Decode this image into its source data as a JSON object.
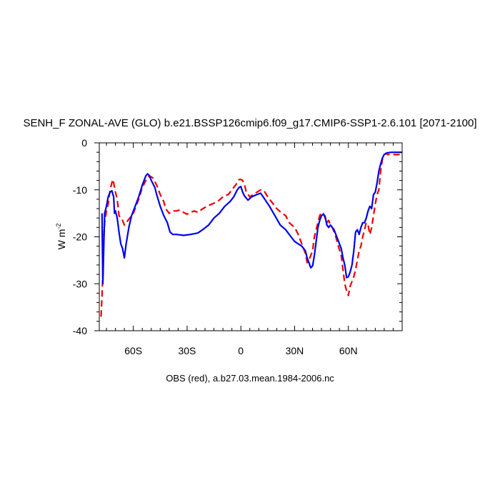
{
  "chart_data": {
    "type": "line",
    "title": "SENH_F ZONAL-AVE (GLO) b.e21.BSSP126cmip6.f09_g17.CMIP6-SSP1-2.6.101 [2071-2100]",
    "subtitle": "OBS (red), a.b27.03.mean.1984-2006.nc",
    "ylabel": "W m",
    "ylabel_sup": "-2",
    "xlim": [
      -79,
      90
    ],
    "ylim": [
      -40,
      0
    ],
    "x_ticks": [
      {
        "value": -60,
        "label": "60S"
      },
      {
        "value": -30,
        "label": "30S"
      },
      {
        "value": 0,
        "label": "0"
      },
      {
        "value": 30,
        "label": "30N"
      },
      {
        "value": 60,
        "label": "60N"
      }
    ],
    "y_ticks": [
      {
        "value": 0,
        "label": "0"
      },
      {
        "value": -10,
        "label": "-10"
      },
      {
        "value": -20,
        "label": "-20"
      },
      {
        "value": -30,
        "label": "-30"
      },
      {
        "value": -40,
        "label": "-40"
      }
    ],
    "grid": false,
    "series": [
      {
        "color": "#0000ee",
        "dash": "solid",
        "points": [
          [
            -77.5,
            -15
          ],
          [
            -77,
            -30
          ],
          [
            -76.5,
            -22
          ],
          [
            -76,
            -15
          ],
          [
            -75,
            -13.5
          ],
          [
            -74,
            -11.5
          ],
          [
            -73,
            -10.5
          ],
          [
            -72,
            -10.2
          ],
          [
            -71,
            -11.5
          ],
          [
            -70.5,
            -15
          ],
          [
            -70,
            -14.5
          ],
          [
            -69,
            -16
          ],
          [
            -68,
            -19
          ],
          [
            -67,
            -21.5
          ],
          [
            -66,
            -22.5
          ],
          [
            -65,
            -24.5
          ],
          [
            -64,
            -21.5
          ],
          [
            -62.5,
            -18
          ],
          [
            -61,
            -15.5
          ],
          [
            -59,
            -13.5
          ],
          [
            -57,
            -11.5
          ],
          [
            -55,
            -9
          ],
          [
            -53,
            -7
          ],
          [
            -52,
            -6.6
          ],
          [
            -51,
            -7
          ],
          [
            -50,
            -8
          ],
          [
            -48,
            -9.5
          ],
          [
            -47,
            -11
          ],
          [
            -45,
            -13.5
          ],
          [
            -43,
            -15.5
          ],
          [
            -41,
            -17
          ],
          [
            -39.5,
            -19
          ],
          [
            -38,
            -19.5
          ],
          [
            -36,
            -19.5
          ],
          [
            -32,
            -19.7
          ],
          [
            -28,
            -19.5
          ],
          [
            -24,
            -19.2
          ],
          [
            -21,
            -18.4
          ],
          [
            -18,
            -17.5
          ],
          [
            -15,
            -16
          ],
          [
            -12,
            -15
          ],
          [
            -9,
            -13.5
          ],
          [
            -6,
            -12.5
          ],
          [
            -4,
            -11.5
          ],
          [
            -2,
            -10
          ],
          [
            -1,
            -9.5
          ],
          [
            0,
            -9.3
          ],
          [
            1,
            -10.5
          ],
          [
            2,
            -11.3
          ],
          [
            4,
            -12.2
          ],
          [
            6,
            -11.5
          ],
          [
            9,
            -11
          ],
          [
            11,
            -10.7
          ],
          [
            13,
            -11.8
          ],
          [
            16,
            -13.5
          ],
          [
            19,
            -15.5
          ],
          [
            22,
            -17.5
          ],
          [
            25,
            -18.5
          ],
          [
            28,
            -20
          ],
          [
            30,
            -21
          ],
          [
            32,
            -21.5
          ],
          [
            34,
            -22
          ],
          [
            36,
            -23
          ],
          [
            37,
            -24.5
          ],
          [
            38,
            -25.5
          ],
          [
            39,
            -26.6
          ],
          [
            40,
            -26.2
          ],
          [
            41,
            -24
          ],
          [
            42,
            -21
          ],
          [
            43,
            -18
          ],
          [
            44,
            -16.5
          ],
          [
            45,
            -15.5
          ],
          [
            46,
            -15.2
          ],
          [
            47,
            -15.6
          ],
          [
            48,
            -17.5
          ],
          [
            49,
            -18
          ],
          [
            50,
            -17.5
          ],
          [
            52,
            -18.5
          ],
          [
            54,
            -20.5
          ],
          [
            56,
            -22.5
          ],
          [
            57,
            -24.5
          ],
          [
            58,
            -26
          ],
          [
            59,
            -28.7
          ],
          [
            60,
            -28.5
          ],
          [
            61,
            -27.5
          ],
          [
            62,
            -26
          ],
          [
            63,
            -23
          ],
          [
            64,
            -19
          ],
          [
            65,
            -18.5
          ],
          [
            66,
            -19.5
          ],
          [
            67,
            -18
          ],
          [
            68,
            -17
          ],
          [
            69,
            -17
          ],
          [
            70,
            -16
          ],
          [
            71,
            -14.5
          ],
          [
            72,
            -13.5
          ],
          [
            73,
            -14
          ],
          [
            74,
            -11
          ],
          [
            75,
            -10.5
          ],
          [
            76,
            -8.5
          ],
          [
            77,
            -6
          ],
          [
            78,
            -4.5
          ],
          [
            79,
            -3.2
          ],
          [
            80,
            -2.5
          ],
          [
            81,
            -2.2
          ],
          [
            82,
            -2.1
          ],
          [
            84,
            -2
          ],
          [
            86,
            -2
          ],
          [
            88,
            -2
          ],
          [
            90,
            -2
          ]
        ]
      },
      {
        "color": "#ee0000",
        "dash": "dashed",
        "points": [
          [
            -78,
            -37
          ],
          [
            -77.5,
            -32.5
          ],
          [
            -77,
            -28
          ],
          [
            -76.5,
            -20
          ],
          [
            -76,
            -17
          ],
          [
            -75,
            -14.5
          ],
          [
            -74,
            -13
          ],
          [
            -73,
            -10
          ],
          [
            -72,
            -8.5
          ],
          [
            -71.5,
            -7.8
          ],
          [
            -71,
            -8.5
          ],
          [
            -70,
            -10.5
          ],
          [
            -69,
            -12
          ],
          [
            -68,
            -15.5
          ],
          [
            -66,
            -16.5
          ],
          [
            -65,
            -17.5
          ],
          [
            -64,
            -17
          ],
          [
            -62,
            -16
          ],
          [
            -60,
            -15
          ],
          [
            -59,
            -14
          ],
          [
            -57,
            -12
          ],
          [
            -55,
            -9.5
          ],
          [
            -53,
            -8
          ],
          [
            -51,
            -7
          ],
          [
            -49,
            -7.5
          ],
          [
            -47,
            -9
          ],
          [
            -45,
            -11
          ],
          [
            -43,
            -12.5
          ],
          [
            -42,
            -14
          ],
          [
            -40,
            -15
          ],
          [
            -38,
            -14.5
          ],
          [
            -36,
            -14.5
          ],
          [
            -34,
            -14.3
          ],
          [
            -32,
            -14.8
          ],
          [
            -30,
            -15.2
          ],
          [
            -28,
            -14.8
          ],
          [
            -26,
            -14.5
          ],
          [
            -24,
            -14.8
          ],
          [
            -22,
            -14.2
          ],
          [
            -19,
            -13.5
          ],
          [
            -16,
            -13
          ],
          [
            -13,
            -12.5
          ],
          [
            -10,
            -11.5
          ],
          [
            -7,
            -11
          ],
          [
            -5,
            -10
          ],
          [
            -3,
            -9
          ],
          [
            -2,
            -8.5
          ],
          [
            -1,
            -7.8
          ],
          [
            0,
            -7.8
          ],
          [
            1,
            -8
          ],
          [
            2,
            -8.8
          ],
          [
            3,
            -10.5
          ],
          [
            5,
            -11.5
          ],
          [
            7,
            -11
          ],
          [
            9,
            -10.5
          ],
          [
            11,
            -10
          ],
          [
            13,
            -10.2
          ],
          [
            15,
            -11.5
          ],
          [
            17,
            -12.5
          ],
          [
            20,
            -14
          ],
          [
            23,
            -15
          ],
          [
            25,
            -15.5
          ],
          [
            27,
            -17
          ],
          [
            30,
            -18
          ],
          [
            32,
            -19.5
          ],
          [
            34,
            -21.5
          ],
          [
            36,
            -23.5
          ],
          [
            37,
            -25.5
          ],
          [
            38,
            -25
          ],
          [
            39,
            -24
          ],
          [
            40,
            -23
          ],
          [
            41,
            -20
          ],
          [
            42,
            -18.5
          ],
          [
            43,
            -17
          ],
          [
            44,
            -15.5
          ],
          [
            45,
            -14.8
          ],
          [
            46,
            -15
          ],
          [
            47,
            -16
          ],
          [
            48,
            -17
          ],
          [
            49,
            -16.5
          ],
          [
            50,
            -17.5
          ],
          [
            51,
            -18
          ],
          [
            52,
            -19
          ],
          [
            53,
            -20
          ],
          [
            54,
            -21.5
          ],
          [
            56,
            -24
          ],
          [
            57,
            -27
          ],
          [
            58,
            -30
          ],
          [
            59,
            -31.5
          ],
          [
            60,
            -32.5
          ],
          [
            61,
            -30.5
          ],
          [
            62,
            -29.5
          ],
          [
            63,
            -28.5
          ],
          [
            64,
            -27
          ],
          [
            65,
            -25
          ],
          [
            66,
            -23
          ],
          [
            67,
            -22
          ],
          [
            68,
            -20
          ],
          [
            69,
            -18.5
          ],
          [
            70,
            -17
          ],
          [
            71,
            -17.5
          ],
          [
            72,
            -19.5
          ],
          [
            73,
            -18
          ],
          [
            74,
            -15.5
          ],
          [
            75,
            -13
          ],
          [
            76,
            -11
          ],
          [
            77,
            -10
          ],
          [
            78,
            -6
          ],
          [
            79,
            -3.5
          ],
          [
            80,
            -2.5
          ],
          [
            81,
            -2.3
          ],
          [
            82,
            -2.5
          ],
          [
            84,
            -2.5
          ],
          [
            86,
            -2.5
          ],
          [
            88,
            -2.5
          ],
          [
            90,
            -2.5
          ]
        ]
      }
    ]
  }
}
